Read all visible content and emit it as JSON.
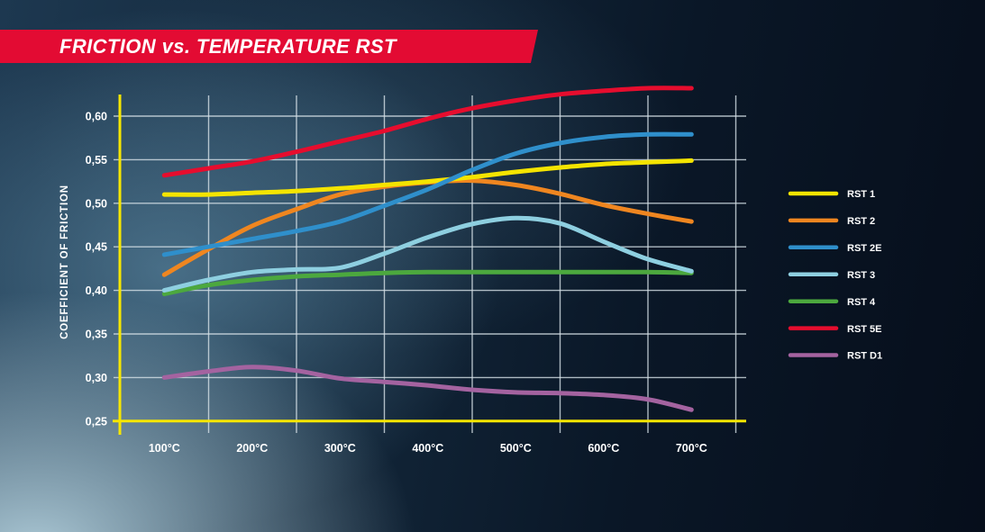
{
  "banner": {
    "title": "FRICTION vs. TEMPERATURE RST",
    "color": "#e30b33"
  },
  "y_axis": {
    "title": "COEFFICIENT OF FRICTION",
    "tick_labels": [
      "0,60",
      "0,55",
      "0,50",
      "0,45",
      "0,40",
      "0,35",
      "0,30",
      "0,25"
    ],
    "tick_values": [
      0.6,
      0.55,
      0.5,
      0.45,
      0.4,
      0.35,
      0.3,
      0.25
    ]
  },
  "x_axis": {
    "tick_labels": [
      "100°C",
      "200°C",
      "300°C",
      "400°C",
      "500°C",
      "600°C",
      "700°C"
    ],
    "tick_values": [
      100,
      200,
      300,
      400,
      500,
      600,
      700
    ]
  },
  "legend": {
    "position": "right",
    "labels": [
      "RST 1",
      "RST 2",
      "RST 2E",
      "RST 3",
      "RST 4",
      "RST 5E",
      "RST D1"
    ]
  },
  "colors": {
    "axis": "#f6e600",
    "grid": "#d7e2e8",
    "text": "#ffffff",
    "banner": "#e30b33"
  },
  "chart_data": {
    "type": "line",
    "title": "FRICTION vs. TEMPERATURE RST",
    "xlabel": "",
    "ylabel": "COEFFICIENT OF FRICTION",
    "x": [
      100,
      150,
      200,
      250,
      300,
      350,
      400,
      450,
      500,
      550,
      600,
      650,
      700
    ],
    "xlim": [
      100,
      700
    ],
    "ylim": [
      0.25,
      0.625
    ],
    "grid": true,
    "legend_position": "right",
    "series": [
      {
        "name": "RST 1",
        "color": "#f4e400",
        "values": [
          0.51,
          0.51,
          0.512,
          0.514,
          0.517,
          0.521,
          0.525,
          0.53,
          0.536,
          0.541,
          0.545,
          0.547,
          0.549
        ]
      },
      {
        "name": "RST 2",
        "color": "#ef8620",
        "values": [
          0.418,
          0.447,
          0.474,
          0.493,
          0.51,
          0.519,
          0.524,
          0.526,
          0.521,
          0.511,
          0.498,
          0.488,
          0.479
        ]
      },
      {
        "name": "RST 2E",
        "color": "#2f8fcb",
        "values": [
          0.441,
          0.45,
          0.459,
          0.468,
          0.479,
          0.497,
          0.516,
          0.538,
          0.557,
          0.569,
          0.576,
          0.579,
          0.579
        ]
      },
      {
        "name": "RST 3",
        "color": "#8ecfe0",
        "values": [
          0.4,
          0.412,
          0.421,
          0.424,
          0.426,
          0.442,
          0.461,
          0.476,
          0.483,
          0.477,
          0.456,
          0.436,
          0.422
        ]
      },
      {
        "name": "RST 4",
        "color": "#4ca83e",
        "values": [
          0.396,
          0.406,
          0.412,
          0.416,
          0.418,
          0.42,
          0.421,
          0.421,
          0.421,
          0.421,
          0.421,
          0.421,
          0.42
        ]
      },
      {
        "name": "RST 5E",
        "color": "#e60d2e",
        "values": [
          0.532,
          0.54,
          0.548,
          0.559,
          0.571,
          0.583,
          0.597,
          0.609,
          0.618,
          0.625,
          0.629,
          0.632,
          0.632
        ]
      },
      {
        "name": "RST D1",
        "color": "#a463a0",
        "values": [
          0.3,
          0.307,
          0.312,
          0.308,
          0.299,
          0.295,
          0.291,
          0.286,
          0.283,
          0.282,
          0.28,
          0.275,
          0.263
        ]
      }
    ]
  }
}
